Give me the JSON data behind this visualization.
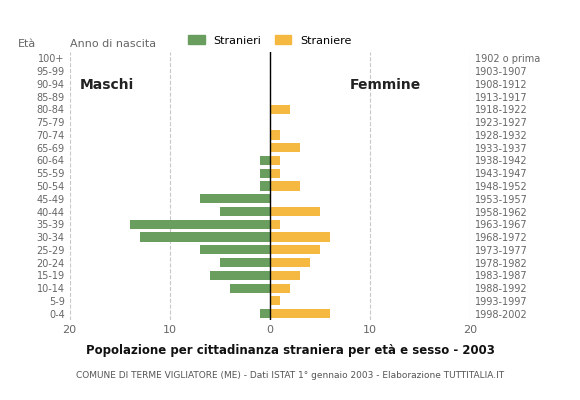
{
  "age_groups": [
    "100+",
    "95-99",
    "90-94",
    "85-89",
    "80-84",
    "75-79",
    "70-74",
    "65-69",
    "60-64",
    "55-59",
    "50-54",
    "45-49",
    "40-44",
    "35-39",
    "30-34",
    "25-29",
    "20-24",
    "15-19",
    "10-14",
    "5-9",
    "0-4"
  ],
  "birth_years": [
    "1902 o prima",
    "1903-1907",
    "1908-1912",
    "1913-1917",
    "1918-1922",
    "1923-1927",
    "1928-1932",
    "1933-1937",
    "1938-1942",
    "1943-1947",
    "1948-1952",
    "1953-1957",
    "1958-1962",
    "1963-1967",
    "1968-1972",
    "1973-1977",
    "1978-1982",
    "1983-1987",
    "1988-1992",
    "1993-1997",
    "1998-2002"
  ],
  "males": [
    0,
    0,
    0,
    0,
    0,
    0,
    0,
    0,
    1,
    1,
    1,
    7,
    5,
    14,
    13,
    7,
    5,
    6,
    4,
    0,
    1
  ],
  "females": [
    0,
    0,
    0,
    0,
    2,
    0,
    1,
    3,
    1,
    1,
    3,
    0,
    5,
    1,
    6,
    5,
    4,
    3,
    2,
    1,
    6
  ],
  "male_color": "#6a9e5f",
  "female_color": "#f5b942",
  "background_color": "#ffffff",
  "grid_color": "#c8c8c8",
  "title": "Popolazione per cittadinanza straniera per età e sesso - 2003",
  "subtitle": "COMUNE DI TERME VIGLIATORE (ME) - Dati ISTAT 1° gennaio 2003 - Elaborazione TUTTITALIA.IT",
  "legend_males": "Stranieri",
  "legend_females": "Straniere",
  "label_eta": "Età",
  "label_maschi": "Maschi",
  "label_femmine": "Femmine",
  "label_anno": "Anno di nascita",
  "xlim": 20
}
